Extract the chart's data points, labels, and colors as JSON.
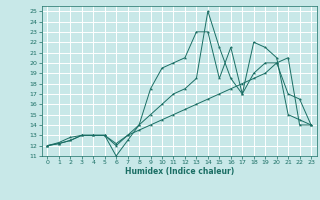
{
  "title": "",
  "xlabel": "Humidex (Indice chaleur)",
  "xlim": [
    -0.5,
    23.5
  ],
  "ylim": [
    11,
    25.5
  ],
  "xticks": [
    0,
    1,
    2,
    3,
    4,
    5,
    6,
    7,
    8,
    9,
    10,
    11,
    12,
    13,
    14,
    15,
    16,
    17,
    18,
    19,
    20,
    21,
    22,
    23
  ],
  "yticks": [
    11,
    12,
    13,
    14,
    15,
    16,
    17,
    18,
    19,
    20,
    21,
    22,
    23,
    24,
    25
  ],
  "bg_color": "#c8e8e8",
  "grid_color": "#ffffff",
  "line_color": "#1a6e64",
  "line1_x": [
    0,
    1,
    2,
    3,
    4,
    5,
    6,
    7,
    8,
    9,
    10,
    11,
    12,
    13,
    14,
    15,
    16,
    17,
    18,
    19,
    20,
    21,
    22,
    23
  ],
  "line1_y": [
    12,
    12.2,
    12.5,
    13,
    13,
    13,
    11,
    12.5,
    14,
    17.5,
    19.5,
    20,
    20.5,
    23,
    23,
    18.5,
    21.5,
    17,
    22,
    21.5,
    20.5,
    15,
    14.5,
    14
  ],
  "line2_x": [
    0,
    1,
    2,
    3,
    4,
    5,
    6,
    7,
    8,
    9,
    10,
    11,
    12,
    13,
    14,
    15,
    16,
    17,
    18,
    19,
    20,
    21,
    22,
    23
  ],
  "line2_y": [
    12,
    12.2,
    12.5,
    13,
    13,
    13,
    12,
    13,
    14,
    15,
    16,
    17,
    17.5,
    18.5,
    25,
    21.5,
    18.5,
    17,
    19,
    20,
    20,
    17,
    16.5,
    14
  ],
  "line3_x": [
    0,
    1,
    2,
    3,
    4,
    5,
    6,
    7,
    8,
    9,
    10,
    11,
    12,
    13,
    14,
    15,
    16,
    17,
    18,
    19,
    20,
    21,
    22,
    23
  ],
  "line3_y": [
    12,
    12.3,
    12.8,
    13,
    13,
    13,
    12.2,
    13,
    13.5,
    14,
    14.5,
    15,
    15.5,
    16,
    16.5,
    17,
    17.5,
    18,
    18.5,
    19,
    20,
    20.5,
    14,
    14
  ]
}
